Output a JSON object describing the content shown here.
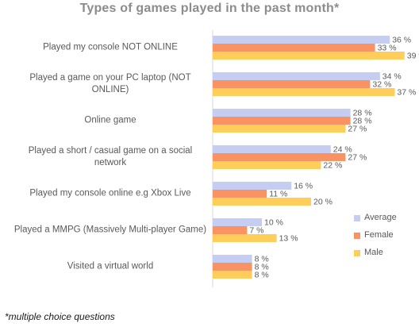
{
  "chart_data": {
    "type": "bar",
    "orientation": "horizontal",
    "title": "Types of games played in the past month*",
    "categories": [
      "Played my console NOT ONLINE",
      "Played a game on your PC laptop (NOT ONLINE)",
      "Online game",
      "Played a short / casual game on a social network",
      "Played my console online e.g Xbox Live",
      "Played a MMPG (Massively Multi-player Game)",
      "Visited a virtual world"
    ],
    "series": [
      {
        "name": "Average",
        "color": "#c5cdf2",
        "values": [
          36,
          34,
          28,
          24,
          16,
          10,
          8
        ]
      },
      {
        "name": "Female",
        "color": "#fa9364",
        "values": [
          33,
          32,
          28,
          27,
          11,
          7,
          8
        ]
      },
      {
        "name": "Male",
        "color": "#ffce5a",
        "values": [
          39,
          37,
          27,
          22,
          20,
          13,
          8
        ]
      }
    ],
    "value_suffix": " %",
    "legend_position": "bottom-right",
    "grid": false
  },
  "footnote": "*multiple choice questions"
}
